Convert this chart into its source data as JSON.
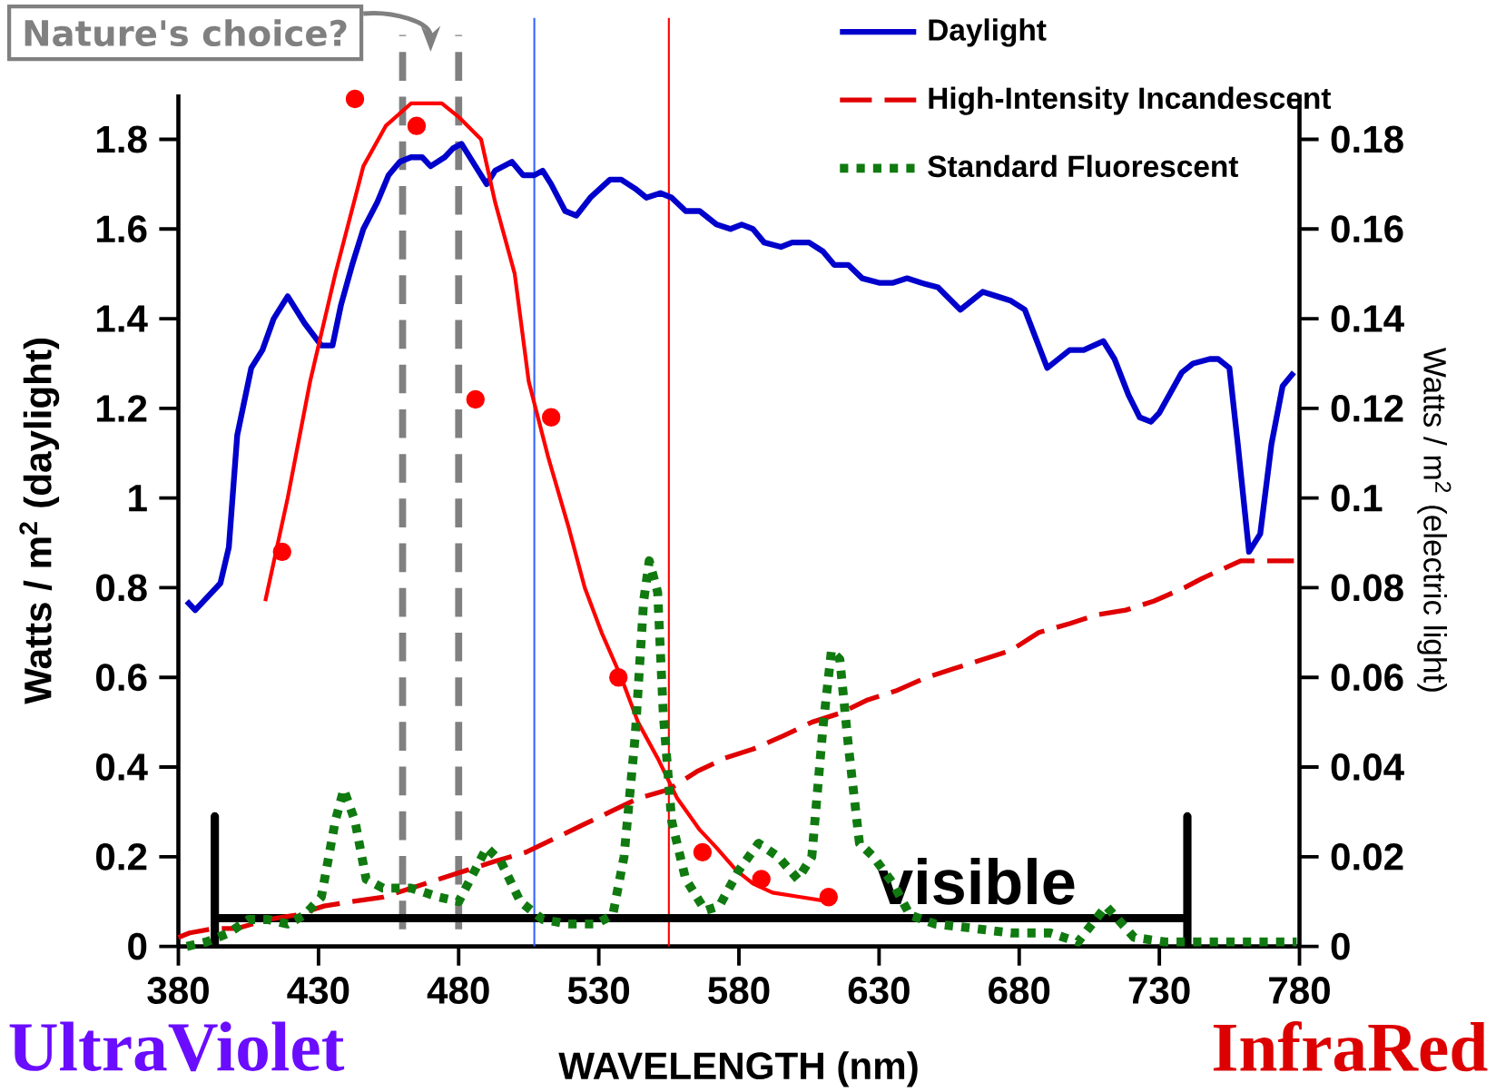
{
  "chart_data": {
    "type": "line",
    "xlabel": "WAVELENGTH (nm)",
    "ylabel": "Watts / m$^{2}$ (daylight)",
    "y2label": "Watts / m$^{2}$ (electric light)",
    "xlim": [
      380,
      780
    ],
    "xticks": [
      380,
      430,
      480,
      530,
      580,
      630,
      680,
      730,
      780
    ],
    "ylim": [
      0,
      1.9
    ],
    "yticks": [
      0,
      0.2,
      0.4,
      0.6,
      0.8,
      1,
      1.2,
      1.4,
      1.6,
      1.8
    ],
    "y2lim": [
      0,
      0.19
    ],
    "y2ticks": [
      0,
      0.02,
      0.04,
      0.06,
      0.08,
      0.1,
      0.12,
      0.14,
      0.16,
      0.18
    ],
    "legend": "top right",
    "series": [
      {
        "name": "Daylight",
        "color": "#0000cc",
        "line_style": "solid",
        "x": [
          383,
          386,
          395,
          398,
          401,
          406,
          410,
          414,
          419,
          425,
          431,
          435,
          438,
          442,
          446,
          451,
          455,
          459,
          463,
          467,
          470,
          475,
          478,
          481,
          486,
          490,
          493,
          499,
          503,
          507,
          510,
          513,
          518,
          522,
          527,
          534,
          538,
          543,
          547,
          552,
          556,
          561,
          566,
          572,
          577,
          581,
          585,
          589,
          595,
          599,
          605,
          610,
          614,
          619,
          624,
          630,
          635,
          640,
          645,
          651,
          659,
          667,
          672,
          677,
          682,
          690,
          694,
          698,
          703,
          710,
          714,
          719,
          723,
          727,
          730,
          738,
          742,
          748,
          751,
          755,
          758,
          762,
          766,
          770,
          774,
          778
        ],
        "values": [
          0.77,
          0.75,
          0.81,
          0.89,
          1.14,
          1.29,
          1.33,
          1.4,
          1.45,
          1.39,
          1.34,
          1.34,
          1.43,
          1.52,
          1.6,
          1.66,
          1.72,
          1.75,
          1.76,
          1.76,
          1.74,
          1.76,
          1.78,
          1.79,
          1.74,
          1.7,
          1.73,
          1.75,
          1.72,
          1.72,
          1.73,
          1.7,
          1.64,
          1.63,
          1.67,
          1.71,
          1.71,
          1.69,
          1.67,
          1.68,
          1.67,
          1.64,
          1.64,
          1.61,
          1.6,
          1.61,
          1.6,
          1.57,
          1.56,
          1.57,
          1.57,
          1.55,
          1.52,
          1.52,
          1.49,
          1.48,
          1.48,
          1.49,
          1.48,
          1.47,
          1.42,
          1.46,
          1.45,
          1.44,
          1.42,
          1.29,
          1.31,
          1.33,
          1.33,
          1.35,
          1.31,
          1.23,
          1.18,
          1.17,
          1.19,
          1.28,
          1.3,
          1.31,
          1.31,
          1.29,
          1.12,
          0.88,
          0.92,
          1.12,
          1.25,
          1.28
        ]
      },
      {
        "name": "High-Intensity Incandescent",
        "axis": "y2",
        "color": "#e00000",
        "line_style": "dashed",
        "x": [
          380,
          384,
          393,
          401,
          412,
          422,
          432,
          442,
          453,
          463,
          473,
          483,
          493,
          504,
          514,
          524,
          534,
          544,
          555,
          565,
          575,
          585,
          596,
          606,
          616,
          626,
          636,
          647,
          657,
          667,
          677,
          687,
          698,
          708,
          718,
          728,
          739,
          745,
          752,
          759,
          766,
          778
        ],
        "values": [
          0.002,
          0.003,
          0.004,
          0.004,
          0.006,
          0.007,
          0.009,
          0.01,
          0.011,
          0.013,
          0.015,
          0.017,
          0.019,
          0.021,
          0.024,
          0.027,
          0.03,
          0.033,
          0.035,
          0.039,
          0.042,
          0.044,
          0.047,
          0.05,
          0.052,
          0.055,
          0.057,
          0.06,
          0.062,
          0.064,
          0.066,
          0.07,
          0.072,
          0.074,
          0.075,
          0.077,
          0.08,
          0.082,
          0.084,
          0.086,
          0.086,
          0.086
        ]
      },
      {
        "name": "Standard Fluorescent",
        "axis": "y2",
        "color": "#107a10",
        "line_style": "dotted",
        "x": [
          383,
          390,
          398,
          405,
          412,
          419,
          425,
          431,
          436,
          439,
          443,
          447,
          453,
          463,
          473,
          480,
          485,
          490,
          495,
          502,
          510,
          519,
          529,
          535,
          539,
          543,
          546,
          548,
          551,
          553,
          556,
          561,
          568,
          573,
          580,
          587,
          594,
          601,
          606,
          610,
          613,
          616,
          619,
          623,
          628,
          635,
          641,
          650,
          664,
          677,
          691,
          701,
          711,
          721,
          732,
          745,
          779
        ],
        "values": [
          0.0,
          0.001,
          0.003,
          0.006,
          0.006,
          0.005,
          0.007,
          0.011,
          0.028,
          0.035,
          0.028,
          0.015,
          0.013,
          0.013,
          0.011,
          0.01,
          0.016,
          0.022,
          0.019,
          0.01,
          0.006,
          0.005,
          0.005,
          0.007,
          0.02,
          0.047,
          0.077,
          0.086,
          0.079,
          0.052,
          0.028,
          0.015,
          0.008,
          0.009,
          0.017,
          0.023,
          0.02,
          0.015,
          0.02,
          0.049,
          0.066,
          0.064,
          0.045,
          0.023,
          0.02,
          0.014,
          0.007,
          0.005,
          0.004,
          0.003,
          0.003,
          0.001,
          0.009,
          0.002,
          0.001,
          0.001,
          0.001
        ]
      },
      {
        "color": "#ff0000",
        "line_style": "solid",
        "x": [
          411,
          419,
          427,
          436,
          446,
          454,
          463,
          474,
          480,
          488,
          493,
          500,
          505,
          512,
          519,
          525,
          531,
          538,
          544,
          551,
          558,
          566,
          572,
          579,
          585,
          592,
          602,
          612
        ],
        "values": [
          0.77,
          1.0,
          1.26,
          1.5,
          1.74,
          1.83,
          1.88,
          1.88,
          1.85,
          1.8,
          1.66,
          1.5,
          1.26,
          1.09,
          0.94,
          0.8,
          0.7,
          0.6,
          0.5,
          0.42,
          0.33,
          0.26,
          0.22,
          0.17,
          0.14,
          0.12,
          0.11,
          0.1
        ]
      },
      {
        "type": "scatter",
        "color": "#ff0000",
        "marker": "circle",
        "x": [
          417,
          443,
          465,
          486,
          513,
          537,
          567,
          588,
          612
        ],
        "values": [
          0.88,
          1.89,
          1.83,
          1.22,
          1.18,
          0.6,
          0.21,
          0.15,
          0.11
        ]
      },
      {
        "color": "#000000",
        "line_style": "solid",
        "x": [
          393,
          393,
          393,
          740,
          740,
          740
        ],
        "values": [
          0,
          0.29,
          0.063,
          0.063,
          0.29,
          0
        ]
      }
    ],
    "ref_lines": [
      {
        "axis": "x",
        "value": 460,
        "color": "#808080",
        "line_style": "dashed"
      },
      {
        "axis": "x",
        "value": 480,
        "color": "#808080",
        "line_style": "dashed"
      },
      {
        "axis": "x",
        "value": 507,
        "color": "#3366ff"
      },
      {
        "axis": "x",
        "value": 555,
        "color": "#ff0000"
      }
    ],
    "annotations": [
      "Nature's choice?",
      {
        "text": "visible",
        "x": 665,
        "y": 0.063
      },
      "UltraViolet",
      "InfraRed"
    ]
  }
}
